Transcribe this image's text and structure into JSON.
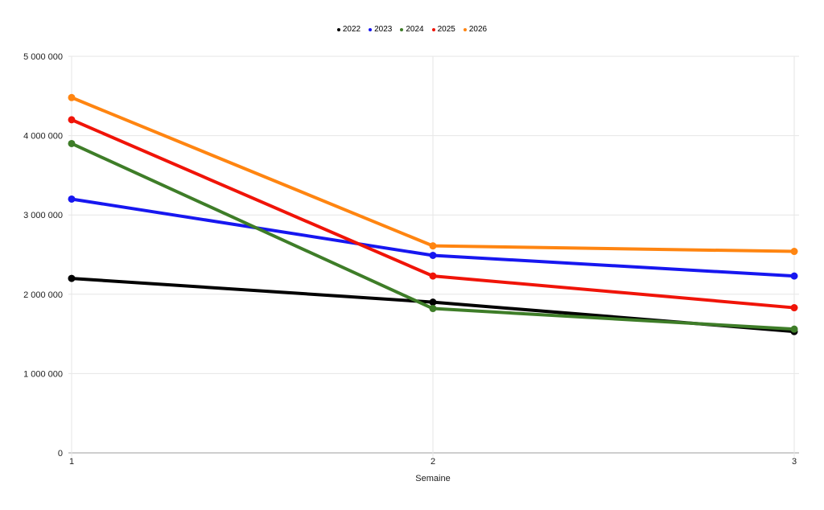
{
  "chart_data": {
    "type": "line",
    "x": [
      1,
      2,
      3
    ],
    "series": [
      {
        "name": "2022",
        "color": "#000000",
        "values": [
          2200000,
          1900000,
          1530000
        ]
      },
      {
        "name": "2023",
        "color": "#1717f0",
        "values": [
          3200000,
          2490000,
          2230000
        ]
      },
      {
        "name": "2024",
        "color": "#3e7d28",
        "values": [
          3900000,
          1820000,
          1560000
        ]
      },
      {
        "name": "2025",
        "color": "#f01408",
        "values": [
          4200000,
          2230000,
          1830000
        ]
      },
      {
        "name": "2026",
        "color": "#ff8511",
        "values": [
          4480000,
          2610000,
          2540000
        ]
      }
    ],
    "title": "",
    "xlabel": "Semaine",
    "ylabel": "",
    "xlim": [
      1,
      3
    ],
    "ylim": [
      0,
      5000000
    ],
    "x_tick_labels": [
      "1",
      "2",
      "3"
    ],
    "y_ticks": [
      0,
      1000000,
      2000000,
      3000000,
      4000000,
      5000000
    ],
    "y_tick_labels": [
      "0",
      "1 000 000",
      "2 000 000",
      "3 000 000",
      "4 000 000",
      "5 000 000"
    ],
    "legend_position": "top",
    "grid": "on",
    "colors": {
      "gridline": "#e6e6e6",
      "baseline": "#9e9e9e",
      "background": "#ffffff",
      "tick_text": "#202020"
    }
  }
}
